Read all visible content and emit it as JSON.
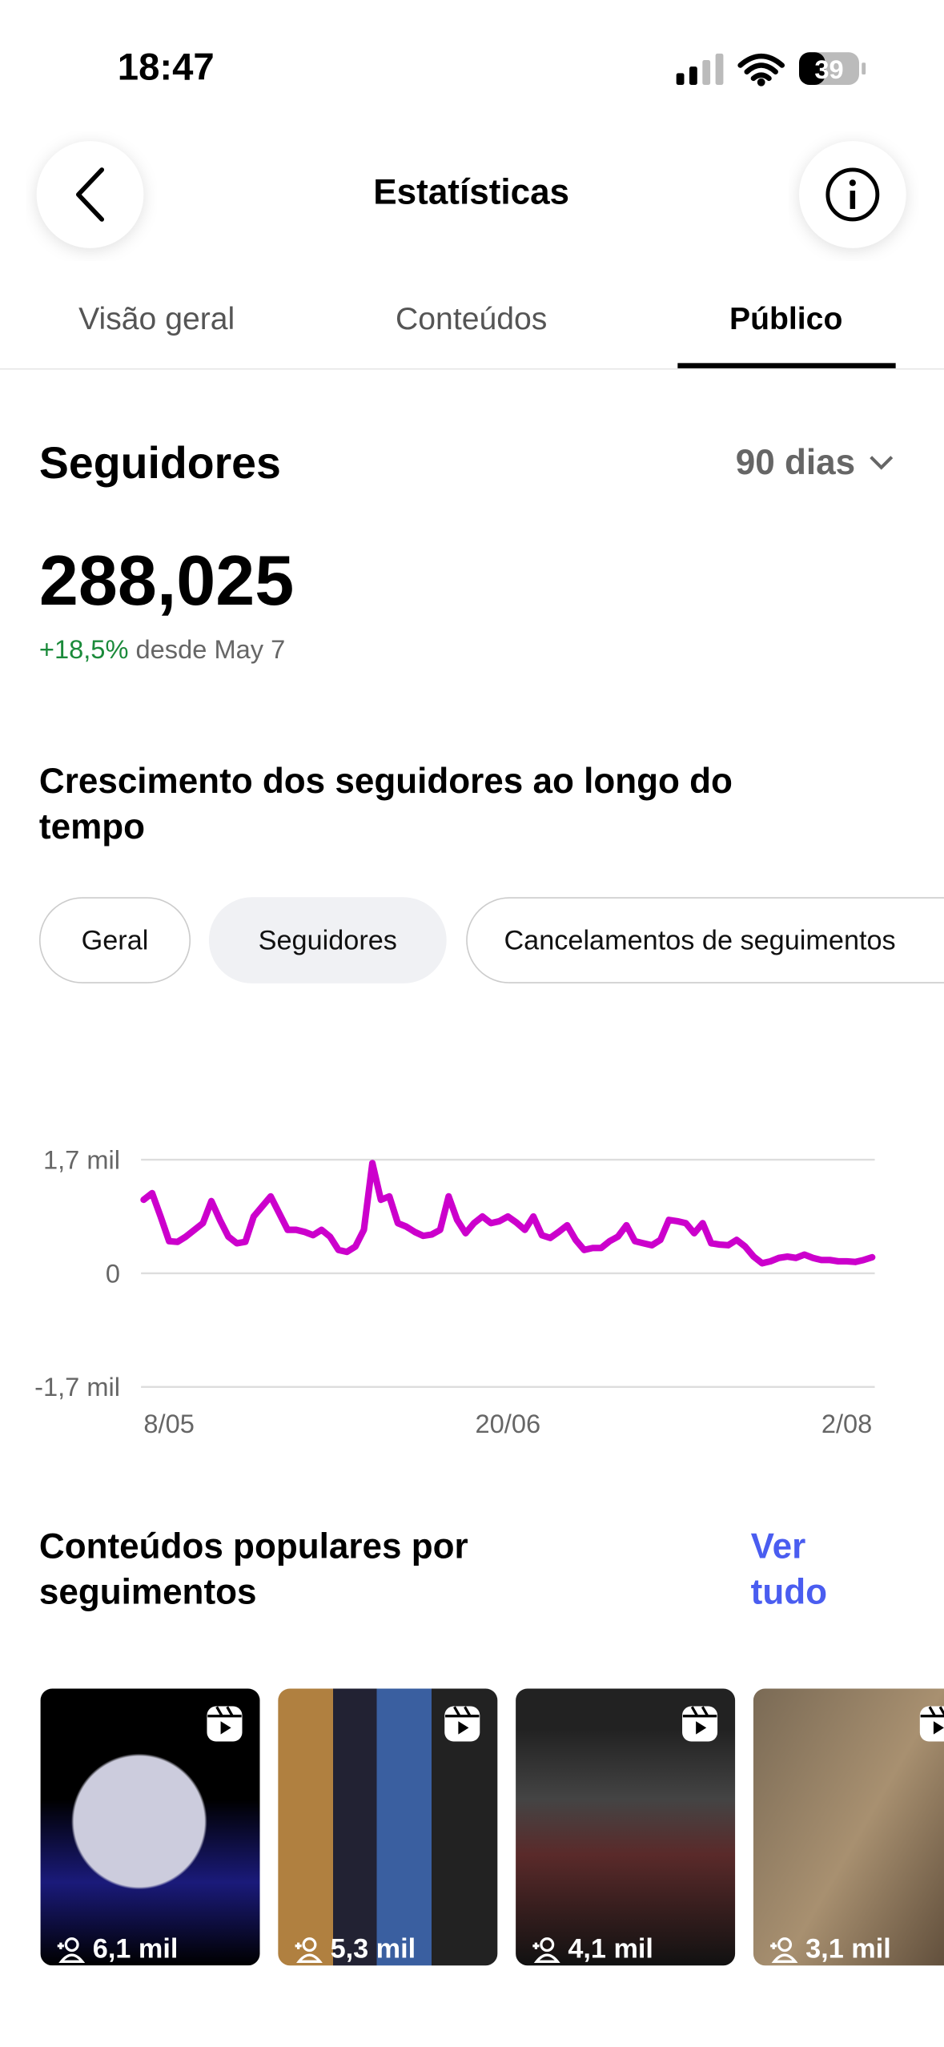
{
  "status_bar": {
    "time": "18:47",
    "battery": "39"
  },
  "header": {
    "title": "Estatísticas"
  },
  "tabs": [
    "Visão geral",
    "Conteúdos",
    "Público"
  ],
  "followers": {
    "title": "Seguidores",
    "period": "90 dias",
    "count": "288,025",
    "change": "+18,5%",
    "since": "desde May 7"
  },
  "chart_section": {
    "title": "Crescimento dos seguidores ao longo do tempo",
    "chips": [
      "Geral",
      "Seguidores",
      "Cancelamentos de seguimentos"
    ]
  },
  "chart_data": {
    "type": "line",
    "color": "#cc00cc",
    "grid": true,
    "categories": [
      "8/05",
      null,
      null,
      null,
      null,
      null,
      null,
      null,
      null,
      null,
      null,
      null,
      null,
      null,
      null,
      null,
      null,
      null,
      null,
      null,
      null,
      null,
      null,
      null,
      null,
      null,
      null,
      null,
      null,
      null,
      null,
      null,
      null,
      null,
      null,
      null,
      null,
      null,
      null,
      null,
      null,
      null,
      null,
      "20/06",
      null,
      null,
      null,
      null,
      null,
      null,
      null,
      null,
      null,
      null,
      null,
      null,
      null,
      null,
      null,
      null,
      null,
      null,
      null,
      null,
      null,
      null,
      null,
      null,
      null,
      null,
      null,
      null,
      null,
      null,
      null,
      null,
      null,
      null,
      null,
      null,
      null,
      null,
      null,
      null,
      null,
      null,
      "2/08"
    ],
    "values": [
      1100,
      1200,
      850,
      480,
      470,
      550,
      650,
      750,
      1080,
      800,
      550,
      450,
      470,
      850,
      1000,
      1150,
      900,
      650,
      650,
      620,
      570,
      650,
      550,
      350,
      320,
      400,
      650,
      1650,
      1100,
      1150,
      750,
      700,
      620,
      560,
      580,
      650,
      1150,
      800,
      600,
      750,
      850,
      750,
      780,
      850,
      760,
      650,
      850,
      570,
      530,
      620,
      720,
      500,
      350,
      380,
      380,
      480,
      550,
      720,
      480,
      450,
      420,
      500,
      800,
      780,
      750,
      600,
      750,
      450,
      430,
      420,
      500,
      400,
      250,
      150,
      180,
      230,
      250,
      230,
      280,
      230,
      200,
      200,
      180,
      180,
      170,
      200,
      240
    ],
    "ylim": [
      -1700,
      1700
    ],
    "yticks": [
      {
        "value": -1700,
        "label": "-1,7 mil"
      },
      0,
      {
        "value": 1700,
        "label": "1,7 mil"
      }
    ]
  },
  "popular": {
    "title": "Conteúdos populares por seguimentos",
    "link": "Ver tudo",
    "items": [
      "6,1 mil",
      "5,3 mil",
      "4,1 mil",
      "3,1 mil"
    ]
  }
}
